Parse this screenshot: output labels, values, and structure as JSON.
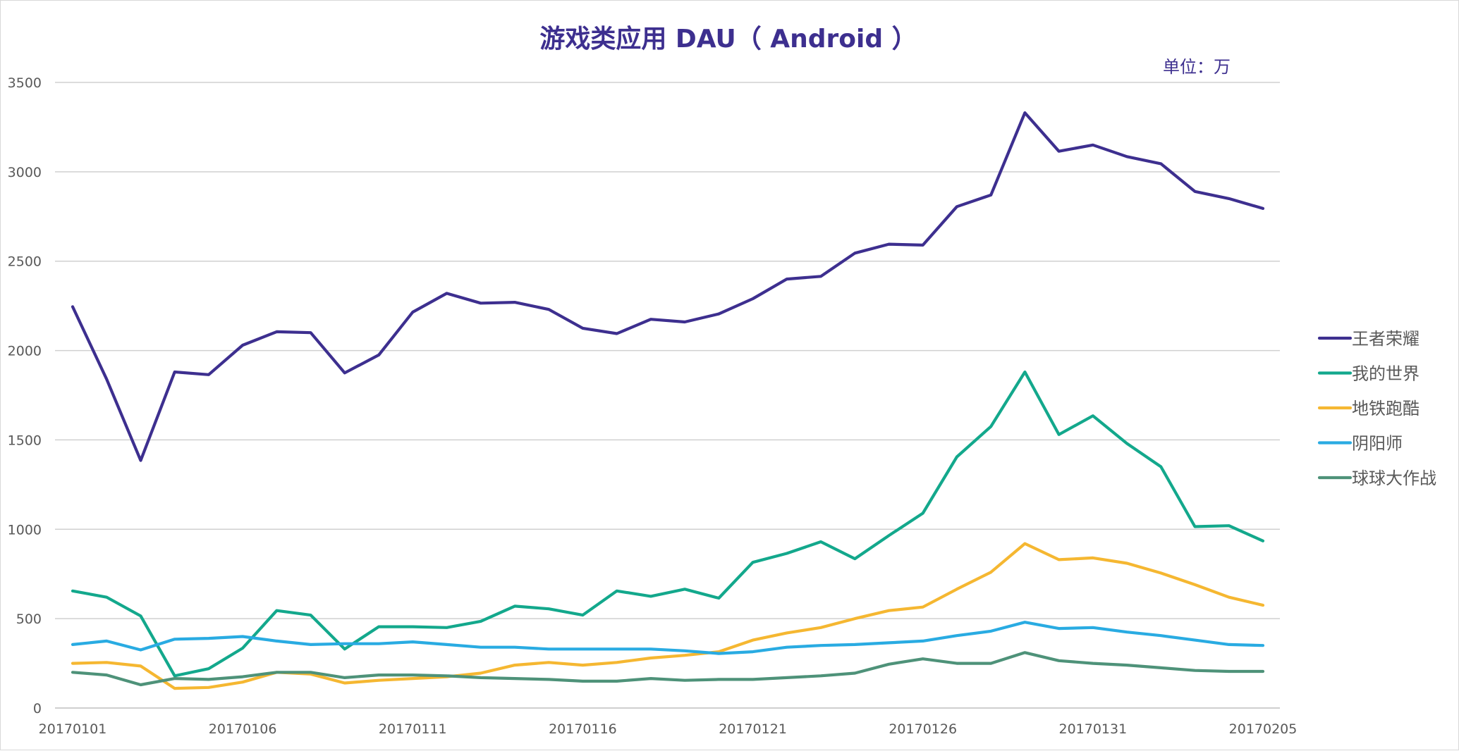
{
  "chart_data": {
    "type": "line",
    "title": "游戏类应用 DAU（ Android ）",
    "unit_label": "单位：万",
    "title_color": "#3D2F8F",
    "ylim": [
      0,
      3500
    ],
    "y_ticks": [
      0,
      500,
      1000,
      1500,
      2000,
      2500,
      3000,
      3500
    ],
    "x": [
      "20170101",
      "20170102",
      "20170103",
      "20170104",
      "20170105",
      "20170106",
      "20170107",
      "20170108",
      "20170109",
      "20170110",
      "20170111",
      "20170112",
      "20170113",
      "20170114",
      "20170115",
      "20170116",
      "20170117",
      "20170118",
      "20170119",
      "20170120",
      "20170121",
      "20170122",
      "20170123",
      "20170124",
      "20170125",
      "20170126",
      "20170127",
      "20170128",
      "20170129",
      "20170130",
      "20170131",
      "20170201",
      "20170202",
      "20170203",
      "20170204",
      "20170205"
    ],
    "x_tick_labels": [
      "20170101",
      "20170106",
      "20170111",
      "20170116",
      "20170121",
      "20170126",
      "20170131",
      "20170205"
    ],
    "grid": true,
    "legend_position": "right",
    "series": [
      {
        "name": "王者荣耀",
        "color": "#3D2F8F",
        "values": [
          2245,
          1840,
          1385,
          1880,
          1865,
          2030,
          2105,
          2100,
          1875,
          1975,
          2215,
          2320,
          2265,
          2270,
          2230,
          2125,
          2095,
          2175,
          2160,
          2205,
          2290,
          2400,
          2415,
          2545,
          2595,
          2590,
          2805,
          2870,
          3330,
          3115,
          3150,
          3085,
          3045,
          2890,
          2850,
          2795
        ]
      },
      {
        "name": "我的世界",
        "color": "#13A88C",
        "values": [
          655,
          620,
          515,
          180,
          220,
          335,
          545,
          520,
          330,
          455,
          455,
          450,
          485,
          570,
          555,
          520,
          655,
          625,
          665,
          615,
          815,
          865,
          930,
          835,
          965,
          1090,
          1405,
          1575,
          1880,
          1530,
          1635,
          1480,
          1350,
          1015,
          1020,
          935
        ]
      },
      {
        "name": "地铁跑酷",
        "color": "#F5B731",
        "values": [
          250,
          255,
          235,
          110,
          115,
          145,
          200,
          190,
          140,
          155,
          165,
          175,
          195,
          240,
          255,
          240,
          255,
          280,
          295,
          315,
          380,
          420,
          450,
          500,
          545,
          565,
          665,
          760,
          920,
          830,
          840,
          810,
          755,
          690,
          620,
          575
        ]
      },
      {
        "name": "阴阳师",
        "color": "#29ABE2",
        "values": [
          355,
          375,
          325,
          385,
          390,
          400,
          375,
          355,
          360,
          360,
          370,
          355,
          340,
          340,
          330,
          330,
          330,
          330,
          320,
          305,
          315,
          340,
          350,
          355,
          365,
          375,
          405,
          430,
          480,
          445,
          450,
          425,
          405,
          380,
          355,
          350
        ]
      },
      {
        "name": "球球大作战",
        "color": "#4E9279",
        "values": [
          200,
          185,
          130,
          165,
          160,
          175,
          200,
          200,
          170,
          185,
          185,
          180,
          170,
          165,
          160,
          150,
          150,
          165,
          155,
          160,
          160,
          170,
          180,
          195,
          245,
          275,
          250,
          250,
          310,
          265,
          250,
          240,
          225,
          210,
          205,
          205
        ]
      }
    ]
  }
}
